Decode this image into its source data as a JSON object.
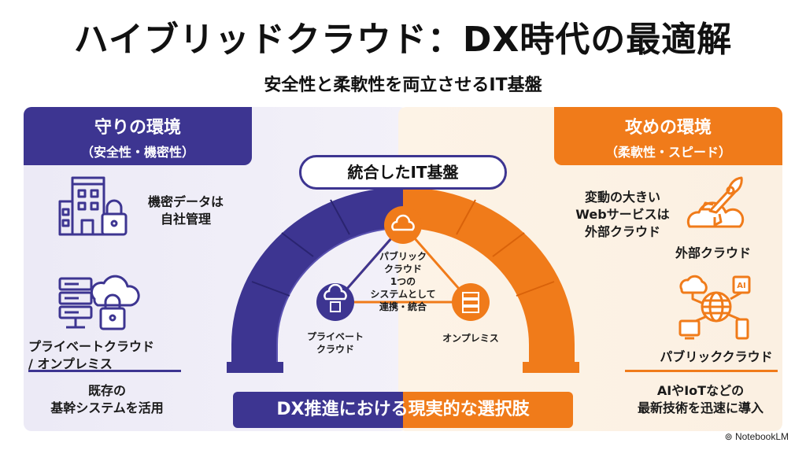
{
  "title": "ハイブリッドクラウド：DX時代の最適解",
  "subtitle": "安全性と柔軟性を両立させるIT基盤",
  "left": {
    "header_line1": "守りの環境",
    "header_line2": "（安全性・機密性）",
    "item1_line1": "機密データは",
    "item1_line2": "自社管理",
    "item2_line1": "プライベートクラウド",
    "item2_line2": "/ オンプレミス",
    "bottom_line1": "既存の",
    "bottom_line2": "基幹システムを活用",
    "color": "#3d3591"
  },
  "right": {
    "header_line1": "攻めの環境",
    "header_line2": "（柔軟性・スピード）",
    "item1_line1": "変動の大きい",
    "item1_line2": "Webサービスは",
    "item1_line3": "外部クラウド",
    "item1_label": "外部クラウド",
    "item2_label": "パブリッククラウド",
    "bottom_line1": "AIやIoTなどの",
    "bottom_line2": "最新技術を迅速に導入",
    "color": "#f07b1a"
  },
  "center": {
    "banner": "統合したIT基盤",
    "node_top_line1": "パブリック",
    "node_top_line2": "クラウド",
    "center_line1": "1つの",
    "center_line2": "システムとして",
    "center_line3": "連携・統合",
    "node_left_line1": "プライベート",
    "node_left_line2": "クラウド",
    "node_right": "オンプレミス",
    "ai_chip": "AI"
  },
  "bottom_banner": "DX推進における現実的な選択肢",
  "logo": "NotebookLM"
}
